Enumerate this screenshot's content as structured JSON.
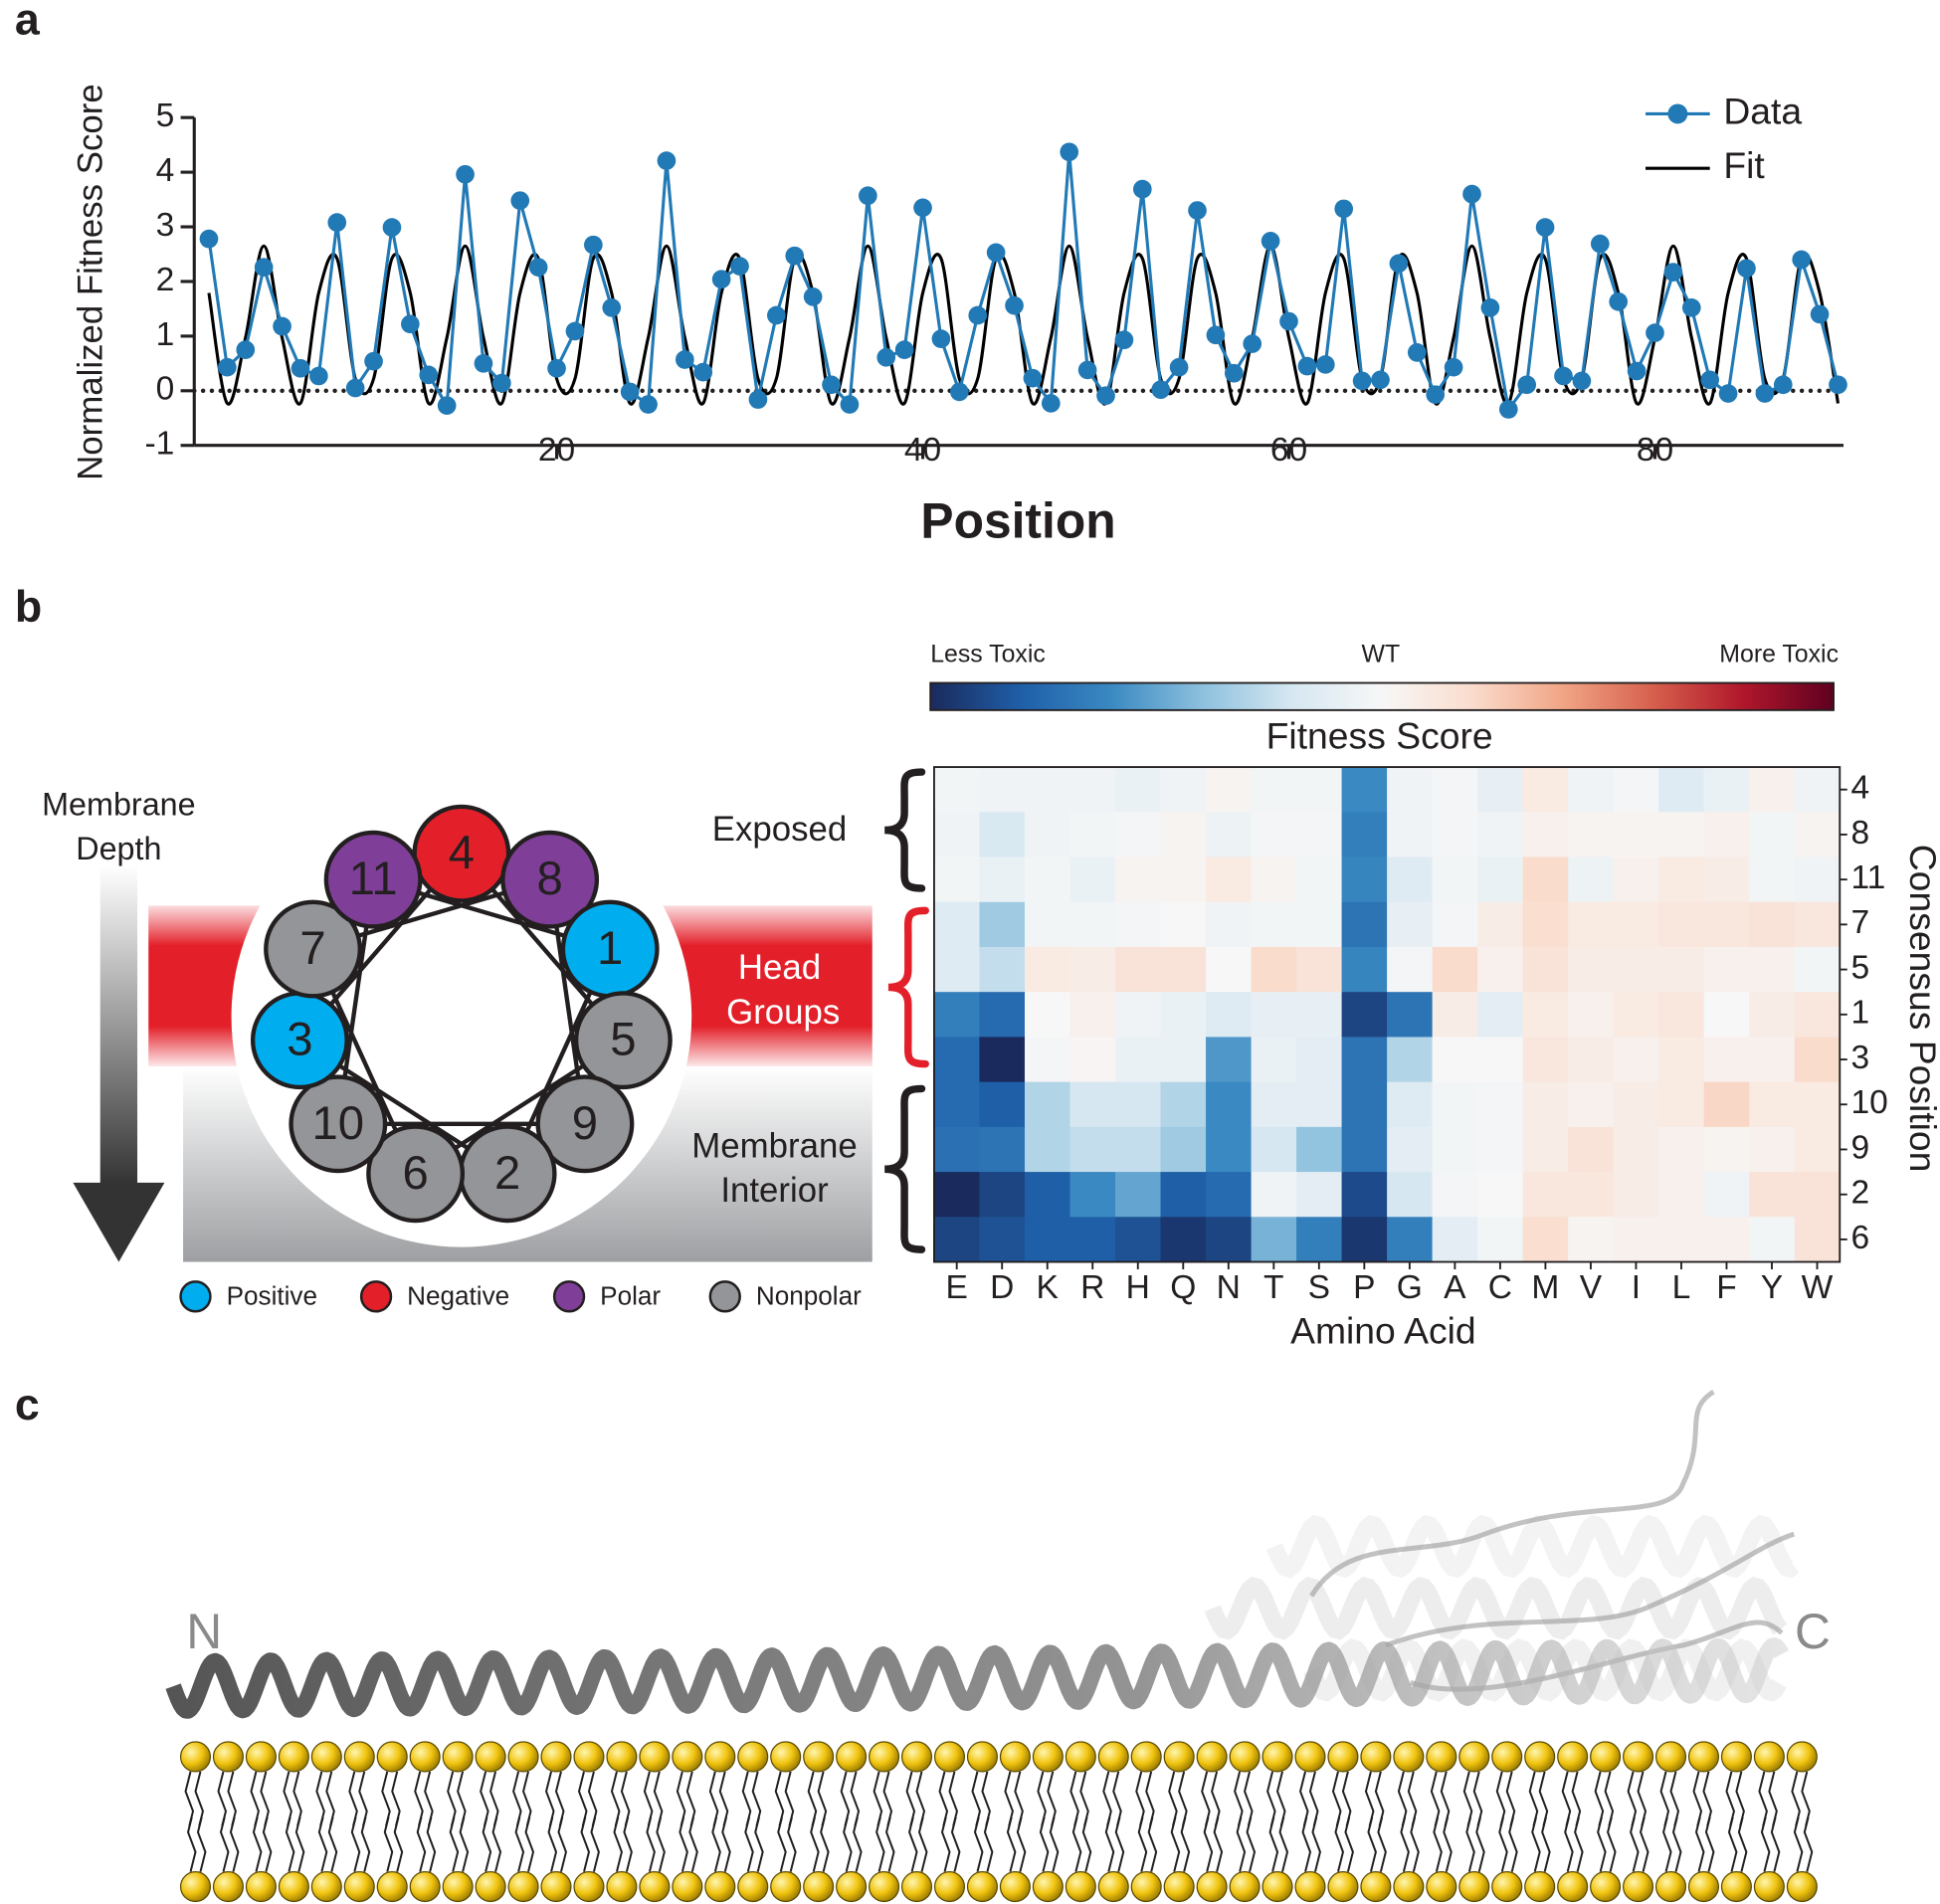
{
  "panels": [
    "a",
    "b",
    "c"
  ],
  "chart_data": [
    {
      "type": "line",
      "xlabel": "Position",
      "ylabel": "Normalized Fitness Score",
      "x": [
        1,
        2,
        3,
        4,
        5,
        6,
        7,
        8,
        9,
        10,
        11,
        12,
        13,
        14,
        15,
        16,
        17,
        18,
        19,
        20,
        21,
        22,
        23,
        24,
        25,
        26,
        27,
        28,
        29,
        30,
        31,
        32,
        33,
        34,
        35,
        36,
        37,
        38,
        39,
        40,
        41,
        42,
        43,
        44,
        45,
        46,
        47,
        48,
        49,
        50,
        51,
        52,
        53,
        54,
        55,
        56,
        57,
        58,
        59,
        60,
        61,
        62,
        63,
        64,
        65,
        66,
        67,
        68,
        69,
        70,
        71,
        72,
        73,
        74,
        75,
        76,
        77,
        78,
        79,
        80,
        81,
        82,
        83,
        84,
        85,
        86,
        87,
        88,
        89,
        90
      ],
      "series": [
        {
          "name": "Data",
          "color": "#2179b5",
          "markers": true,
          "values": [
            2.78,
            0.43,
            0.75,
            2.26,
            1.18,
            0.41,
            0.27,
            3.08,
            0.05,
            0.54,
            2.99,
            1.22,
            0.29,
            -0.27,
            3.96,
            0.5,
            0.14,
            3.48,
            2.26,
            0.41,
            1.09,
            2.67,
            1.52,
            -0.02,
            -0.25,
            4.21,
            0.57,
            0.34,
            2.04,
            2.28,
            -0.16,
            1.38,
            2.47,
            1.72,
            0.11,
            -0.25,
            3.57,
            0.61,
            0.75,
            3.35,
            0.95,
            -0.02,
            1.38,
            2.53,
            1.56,
            0.23,
            -0.23,
            4.37,
            0.38,
            -0.09,
            0.93,
            3.69,
            0.02,
            0.43,
            3.3,
            1.02,
            0.32,
            0.86,
            2.74,
            1.27,
            0.45,
            0.48,
            3.33,
            0.18,
            0.2,
            2.33,
            0.7,
            -0.07,
            0.43,
            3.6,
            1.52,
            -0.34,
            0.11,
            2.99,
            0.27,
            0.18,
            2.69,
            1.63,
            0.36,
            1.06,
            2.17,
            1.52,
            0.2,
            -0.05,
            2.24,
            -0.05,
            0.11,
            2.4,
            1.4,
            0.11
          ]
        },
        {
          "name": "Fit",
          "color": "#000000",
          "markers": false,
          "smooth": true,
          "values": [
            1.79,
            -0.23,
            0.97,
            2.65,
            0.97,
            -0.23,
            1.79,
            2.42,
            0.22,
            0.22,
            2.42,
            1.79,
            -0.23,
            0.97,
            2.65,
            0.97,
            -0.23,
            1.79,
            2.42,
            0.22,
            0.22,
            2.42,
            1.79,
            -0.23,
            0.97,
            2.65,
            0.97,
            -0.23,
            1.79,
            2.42,
            0.22,
            0.22,
            2.42,
            1.79,
            -0.23,
            0.97,
            2.65,
            0.97,
            -0.23,
            1.79,
            2.42,
            0.22,
            0.22,
            2.42,
            1.79,
            -0.23,
            0.97,
            2.65,
            0.97,
            -0.23,
            1.79,
            2.42,
            0.22,
            0.22,
            2.42,
            1.79,
            -0.23,
            0.97,
            2.65,
            0.97,
            -0.23,
            1.79,
            2.42,
            0.22,
            0.22,
            2.42,
            1.79,
            -0.23,
            0.97,
            2.65,
            0.97,
            -0.23,
            1.79,
            2.42,
            0.22,
            0.22,
            2.42,
            1.79,
            -0.23,
            0.97,
            2.65,
            0.97,
            -0.23,
            1.79,
            2.42,
            0.22,
            0.22,
            2.42,
            1.79,
            -0.23
          ]
        }
      ],
      "xlim": [
        0.2,
        90.3
      ],
      "ylim": [
        -1,
        5
      ],
      "xticks": [
        20,
        40,
        60,
        80
      ],
      "yticks": [
        -1,
        0,
        1,
        2,
        3,
        4,
        5
      ],
      "zero_line": true,
      "legend": "top-right"
    },
    {
      "type": "heatmap",
      "title": "Fitness Score",
      "xlabel": "Amino Acid",
      "ylabel": "Consensus Position",
      "colorbar_labels": [
        "Less Toxic",
        "WT",
        "More Toxic"
      ],
      "categories": [
        "E",
        "D",
        "K",
        "R",
        "H",
        "Q",
        "N",
        "T",
        "S",
        "P",
        "G",
        "A",
        "C",
        "M",
        "V",
        "I",
        "L",
        "F",
        "Y",
        "W"
      ],
      "rows": [
        "4",
        "8",
        "11",
        "7",
        "5",
        "1",
        "3",
        "10",
        "9",
        "2",
        "6"
      ],
      "clim": [
        -1,
        1
      ],
      "colorscale": [
        "#1a2a5c",
        "#1f5fa8",
        "#3a89c2",
        "#8cc0dd",
        "#d6e7f1",
        "#f7f7f7",
        "#fadccd",
        "#f1a585",
        "#d6604d",
        "#b0172b",
        "#5e0020"
      ],
      "values": [
        [
          -0.03,
          -0.05,
          -0.05,
          -0.05,
          -0.08,
          -0.05,
          0.03,
          -0.03,
          -0.03,
          -0.6,
          -0.05,
          -0.02,
          -0.1,
          0.1,
          -0.05,
          -0.02,
          -0.15,
          -0.08,
          0.05,
          -0.05
        ],
        [
          -0.05,
          -0.18,
          -0.05,
          -0.03,
          -0.02,
          0.03,
          -0.06,
          -0.02,
          -0.02,
          -0.65,
          -0.05,
          -0.02,
          -0.05,
          0.05,
          0.03,
          0.03,
          0.03,
          0.05,
          -0.03,
          0.03
        ],
        [
          -0.03,
          -0.08,
          -0.03,
          -0.08,
          0.03,
          0.03,
          0.1,
          0.03,
          -0.03,
          -0.62,
          -0.15,
          -0.03,
          -0.08,
          0.2,
          -0.06,
          0.05,
          0.1,
          0.08,
          -0.03,
          -0.05
        ],
        [
          -0.15,
          -0.35,
          -0.03,
          -0.03,
          -0.02,
          0,
          -0.05,
          -0.03,
          -0.03,
          -0.7,
          -0.1,
          -0.02,
          0.08,
          0.18,
          0.1,
          0.1,
          0.12,
          0.12,
          0.15,
          0.12
        ],
        [
          -0.15,
          -0.25,
          0.1,
          0.08,
          0.15,
          0.15,
          0,
          0.2,
          0.15,
          -0.62,
          -0.02,
          0.2,
          0.05,
          0.15,
          0.08,
          0.08,
          0.08,
          0.05,
          0.05,
          -0.03
        ],
        [
          -0.65,
          -0.75,
          0,
          0.05,
          -0.05,
          -0.08,
          -0.15,
          -0.1,
          -0.1,
          -0.9,
          -0.7,
          0.08,
          -0.12,
          0.1,
          0.05,
          0.1,
          0.12,
          0,
          0.08,
          0.12
        ],
        [
          -0.75,
          -1,
          -0.02,
          0.02,
          -0.08,
          -0.08,
          -0.55,
          -0.08,
          -0.12,
          -0.7,
          -0.3,
          0,
          0,
          0.12,
          0.08,
          0.05,
          0.1,
          0.05,
          0.05,
          0.2
        ],
        [
          -0.75,
          -0.8,
          -0.3,
          -0.2,
          -0.2,
          -0.3,
          -0.6,
          -0.12,
          -0.12,
          -0.7,
          -0.15,
          -0.03,
          -0.02,
          0.08,
          0.05,
          0.08,
          0.1,
          0.22,
          0.1,
          0.1
        ],
        [
          -0.72,
          -0.7,
          -0.3,
          -0.25,
          -0.25,
          -0.35,
          -0.6,
          -0.2,
          -0.38,
          -0.7,
          -0.12,
          -0.03,
          -0.02,
          0.08,
          0.15,
          0.08,
          0.05,
          0.03,
          0.05,
          0.1
        ],
        [
          -1,
          -0.9,
          -0.8,
          -0.6,
          -0.5,
          -0.8,
          -0.75,
          -0.05,
          -0.12,
          -0.88,
          -0.2,
          -0.02,
          0,
          0.12,
          0.12,
          0.08,
          0.05,
          -0.05,
          0.15,
          0.15
        ],
        [
          -0.9,
          -0.85,
          -0.8,
          -0.8,
          -0.85,
          -0.95,
          -0.9,
          -0.45,
          -0.65,
          -0.95,
          -0.65,
          -0.12,
          -0.03,
          0.18,
          0.03,
          0.05,
          0.05,
          0.05,
          -0.03,
          0.15
        ]
      ]
    }
  ],
  "membrane": {
    "depth_label": [
      "Membrane",
      "Depth"
    ],
    "regions": [
      {
        "label": [
          "Exposed"
        ],
        "color": "#231f20"
      },
      {
        "label": [
          "Head",
          "Groups"
        ],
        "color": "#e3202a"
      },
      {
        "label": [
          "Membrane",
          "Interior"
        ],
        "color": "#231f20"
      }
    ]
  },
  "wheel": {
    "nodes": [
      {
        "label": "4",
        "color": "#e3202a"
      },
      {
        "label": "8",
        "color": "#7f3f98"
      },
      {
        "label": "1",
        "color": "#00aeef"
      },
      {
        "label": "5",
        "color": "#939598"
      },
      {
        "label": "9",
        "color": "#939598"
      },
      {
        "label": "2",
        "color": "#939598"
      },
      {
        "label": "6",
        "color": "#939598"
      },
      {
        "label": "10",
        "color": "#939598"
      },
      {
        "label": "3",
        "color": "#00aeef"
      },
      {
        "label": "7",
        "color": "#939598"
      },
      {
        "label": "11",
        "color": "#7f3f98"
      }
    ],
    "legend": [
      {
        "label": "Positive",
        "color": "#00aeef"
      },
      {
        "label": "Negative",
        "color": "#e3202a"
      },
      {
        "label": "Polar",
        "color": "#7f3f98"
      },
      {
        "label": "Nonpolar",
        "color": "#939598"
      }
    ]
  },
  "structure": {
    "n_label": "N",
    "c_label": "C"
  }
}
